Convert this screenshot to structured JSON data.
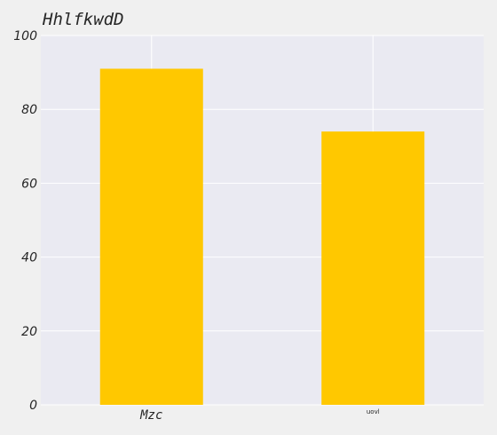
{
  "chart_data": {
    "type": "bar",
    "title": "HhlfkwdD",
    "xlabel": "",
    "ylabel": "",
    "categories": [
      "Mzc",
      "uovl"
    ],
    "values": [
      91,
      74
    ],
    "ylim": [
      0,
      100
    ],
    "yticks": [
      "0",
      "20",
      "40",
      "60",
      "80",
      "100"
    ],
    "grid": true,
    "legend": "none",
    "bar_color": "#ffc800",
    "plot_background": "#eaeaf2",
    "figure_background": "#f0f0f0"
  }
}
